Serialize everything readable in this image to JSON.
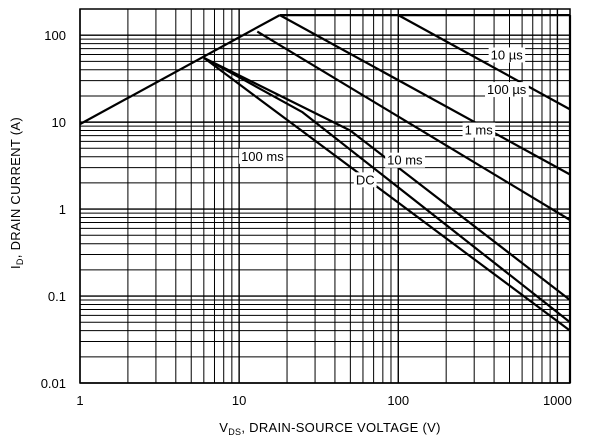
{
  "chart_data": {
    "type": "line",
    "title": "",
    "x_scale": "log",
    "y_scale": "log",
    "xlim": [
      1,
      1200
    ],
    "ylim": [
      0.01,
      200
    ],
    "grid": true,
    "xlabel": {
      "prefix": "V",
      "sub": "DS",
      "suffix": ", DRAIN-SOURCE VOLTAGE (V)"
    },
    "ylabel": {
      "prefix": "I",
      "sub": "D",
      "suffix": ", DRAIN CURRENT (A)"
    },
    "x_ticks": [
      "1",
      "10",
      "100",
      "1000"
    ],
    "y_ticks": [
      "0.01",
      "0.1",
      "1",
      "10",
      "100"
    ],
    "boundaries": [
      {
        "name": "rds_on_limit",
        "points": [
          [
            1,
            9.5
          ],
          [
            18,
            170
          ]
        ]
      },
      {
        "name": "current_limit",
        "points": [
          [
            18,
            170
          ],
          [
            1200,
            170
          ]
        ]
      },
      {
        "name": "voltage_limit",
        "points": [
          [
            1200,
            170
          ],
          [
            1200,
            0.01
          ]
        ]
      }
    ],
    "series": [
      {
        "name": "10 µs",
        "points": [
          [
            100,
            170
          ],
          [
            1200,
            14
          ]
        ]
      },
      {
        "name": "100 µs",
        "points": [
          [
            18,
            170
          ],
          [
            1200,
            2.5
          ]
        ]
      },
      {
        "name": "1 ms",
        "points": [
          [
            13,
            110
          ],
          [
            1200,
            0.75
          ]
        ]
      },
      {
        "name": "10 ms",
        "points": [
          [
            6,
            55
          ],
          [
            50,
            8
          ],
          [
            1200,
            0.09
          ]
        ]
      },
      {
        "name": "100 ms",
        "points": [
          [
            6,
            55
          ],
          [
            25,
            13
          ],
          [
            1200,
            0.05
          ]
        ]
      },
      {
        "name": "DC",
        "points": [
          [
            6,
            55
          ],
          [
            1200,
            0.04
          ]
        ]
      }
    ],
    "annotations": [
      {
        "text": "10 µs",
        "at": [
          480,
          60
        ]
      },
      {
        "text": "100 µs",
        "at": [
          480,
          24
        ]
      },
      {
        "text": "1 ms",
        "at": [
          320,
          8.2
        ]
      },
      {
        "text": "10 ms",
        "at": [
          110,
          3.7
        ]
      },
      {
        "text": "100 ms",
        "at": [
          14,
          4.1
        ]
      },
      {
        "text": "DC",
        "at": [
          62,
          2.2
        ]
      }
    ]
  }
}
